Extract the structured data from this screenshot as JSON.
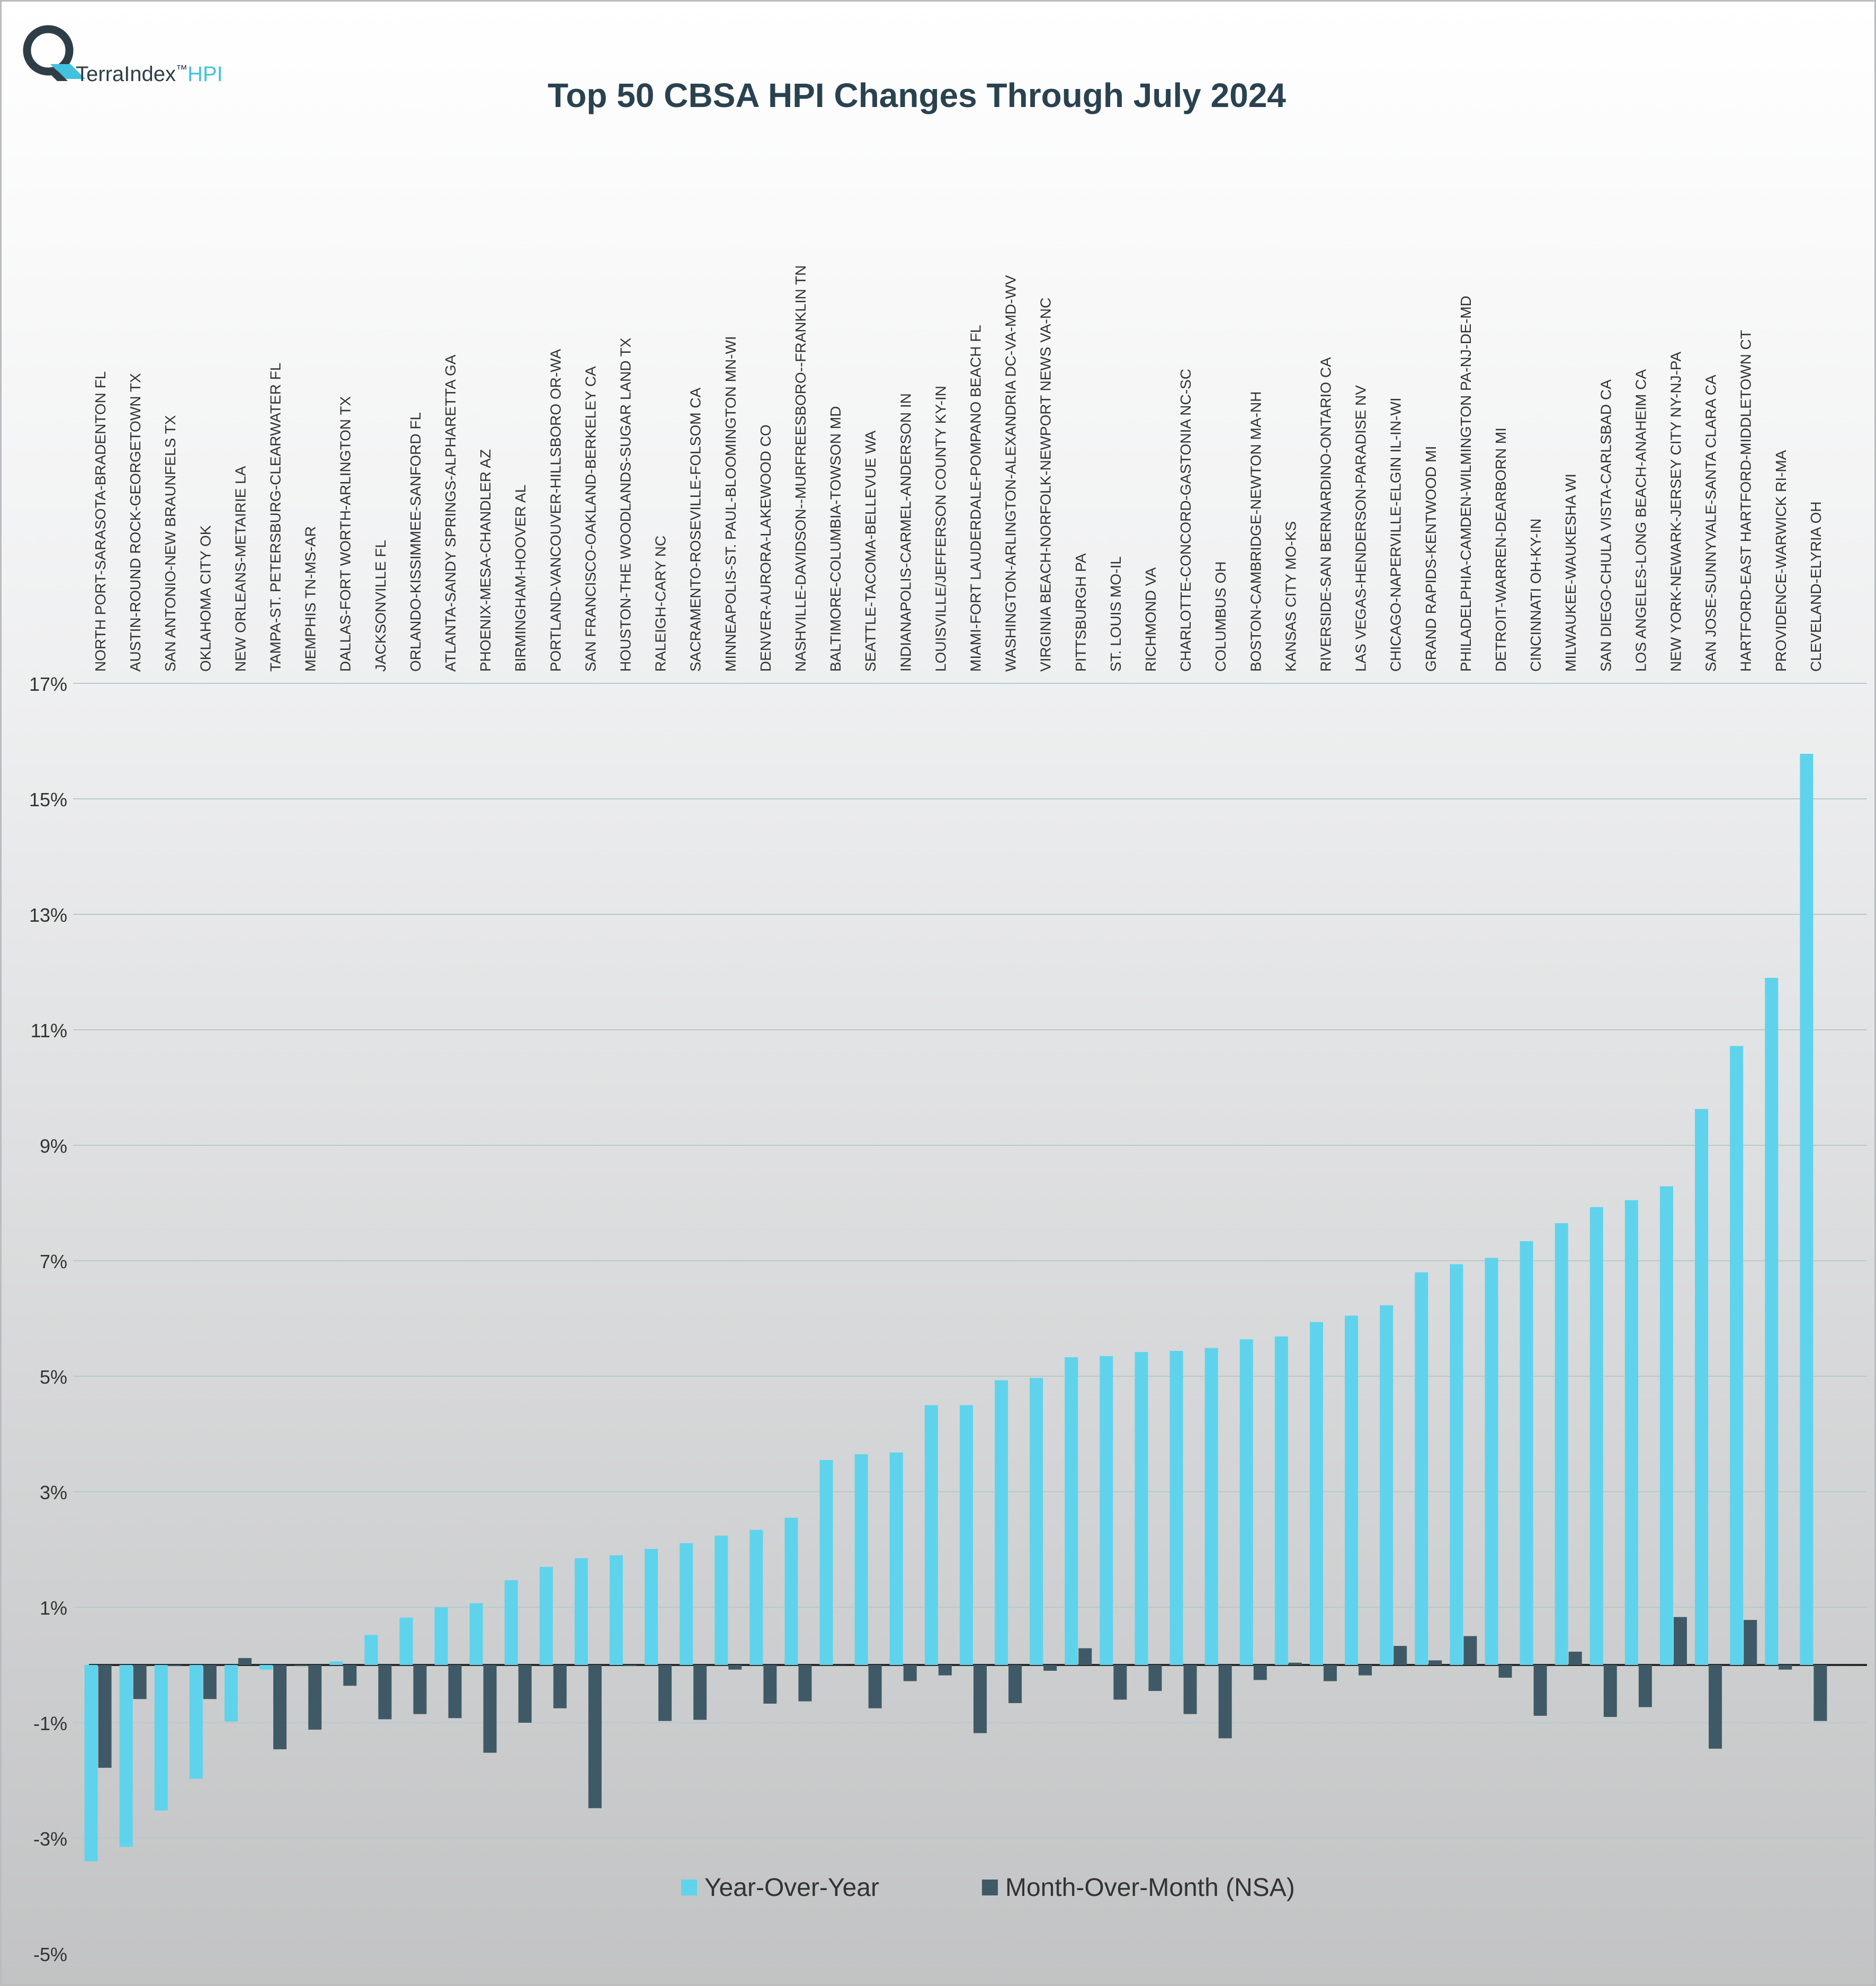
{
  "logo": {
    "brand": "TerraIndex",
    "trademark": "™",
    "suffix": "HPI"
  },
  "chart_data": {
    "type": "bar",
    "title": "Top 50 CBSA HPI Changes Through July 2024",
    "xlabel": "",
    "ylabel": "",
    "ylim": [
      -5,
      17
    ],
    "y_ticks": [
      17,
      15,
      13,
      11,
      9,
      7,
      5,
      3,
      1,
      -1,
      -3,
      -5
    ],
    "y_tick_labels": [
      "17%",
      "15%",
      "13%",
      "11%",
      "9%",
      "7%",
      "5%",
      "3%",
      "1%",
      "-1%",
      "-3%",
      "-5%"
    ],
    "grid": true,
    "legend_position": "bottom",
    "categories": [
      "NORTH PORT-SARASOTA-BRADENTON FL",
      "AUSTIN-ROUND ROCK-GEORGETOWN TX",
      "SAN ANTONIO-NEW BRAUNFELS TX",
      "OKLAHOMA CITY OK",
      "NEW ORLEANS-METAIRIE LA",
      "TAMPA-ST. PETERSBURG-CLEARWATER FL",
      "MEMPHIS TN-MS-AR",
      "DALLAS-FORT WORTH-ARLINGTON TX",
      "JACKSONVILLE FL",
      "ORLANDO-KISSIMMEE-SANFORD FL",
      "ATLANTA-SANDY SPRINGS-ALPHARETTA GA",
      "PHOENIX-MESA-CHANDLER AZ",
      "BIRMINGHAM-HOOVER AL",
      "PORTLAND-VANCOUVER-HILLSBORO OR-WA",
      "SAN FRANCISCO-OAKLAND-BERKELEY CA",
      "HOUSTON-THE WOODLANDS-SUGAR LAND TX",
      "RALEIGH-CARY NC",
      "SACRAMENTO-ROSEVILLE-FOLSOM CA",
      "MINNEAPOLIS-ST. PAUL-BLOOMINGTON MN-WI",
      "DENVER-AURORA-LAKEWOOD CO",
      "NASHVILLE-DAVIDSON--MURFREESBORO--FRANKLIN TN",
      "BALTIMORE-COLUMBIA-TOWSON MD",
      "SEATTLE-TACOMA-BELLEVUE WA",
      "INDIANAPOLIS-CARMEL-ANDERSON IN",
      "LOUISVILLE/JEFFERSON COUNTY KY-IN",
      "MIAMI-FORT LAUDERDALE-POMPANO BEACH FL",
      "WASHINGTON-ARLINGTON-ALEXANDRIA DC-VA-MD-WV",
      "VIRGINIA BEACH-NORFOLK-NEWPORT NEWS VA-NC",
      "PITTSBURGH PA",
      "ST. LOUIS MO-IL",
      "RICHMOND VA",
      "CHARLOTTE-CONCORD-GASTONIA NC-SC",
      "COLUMBUS OH",
      "BOSTON-CAMBRIDGE-NEWTON MA-NH",
      "KANSAS CITY MO-KS",
      "RIVERSIDE-SAN BERNARDINO-ONTARIO CA",
      "LAS VEGAS-HENDERSON-PARADISE NV",
      "CHICAGO-NAPERVILLE-ELGIN IL-IN-WI",
      "GRAND RAPIDS-KENTWOOD MI",
      "PHILADELPHIA-CAMDEN-WILMINGTON PA-NJ-DE-MD",
      "DETROIT-WARREN-DEARBORN MI",
      "CINCINNATI OH-KY-IN",
      "MILWAUKEE-WAUKESHA WI",
      "SAN DIEGO-CHULA VISTA-CARLSBAD CA",
      "LOS ANGELES-LONG BEACH-ANAHEIM CA",
      "NEW YORK-NEWARK-JERSEY CITY NY-NJ-PA",
      "SAN JOSE-SUNNYVALE-SANTA CLARA CA",
      "HARTFORD-EAST HARTFORD-MIDDLETOWN CT",
      "PROVIDENCE-WARWICK RI-MA",
      "CLEVELAND-ELYRIA OH"
    ],
    "series": [
      {
        "name": "Year-Over-Year",
        "color": "#5fd3ec",
        "values": [
          -3.4,
          -3.15,
          -2.52,
          -1.97,
          -0.98,
          -0.08,
          0.0,
          0.06,
          0.52,
          0.82,
          1.0,
          1.07,
          1.47,
          1.7,
          1.85,
          1.9,
          2.01,
          2.11,
          2.24,
          2.34,
          2.55,
          3.55,
          3.65,
          3.68,
          4.5,
          4.5,
          4.93,
          4.97,
          5.33,
          5.35,
          5.42,
          5.44,
          5.49,
          5.64,
          5.69,
          5.94,
          6.05,
          6.23,
          6.8,
          6.94,
          7.05,
          7.34,
          7.65,
          7.93,
          8.05,
          8.29,
          9.63,
          10.72,
          11.9,
          15.78
        ]
      },
      {
        "name": "Month-Over-Month (NSA)",
        "color": "#3f5a66",
        "values": [
          -1.78,
          -0.59,
          -0.02,
          -0.59,
          0.12,
          -1.46,
          -1.12,
          -0.36,
          -0.94,
          -0.85,
          -0.92,
          -1.52,
          -1.0,
          -0.75,
          -2.48,
          -0.02,
          -0.97,
          -0.95,
          -0.08,
          -0.67,
          -0.63,
          0.0,
          -0.75,
          -0.28,
          -0.18,
          -1.18,
          -0.66,
          -0.1,
          0.29,
          -0.6,
          -0.45,
          -0.85,
          -1.27,
          -0.26,
          0.04,
          -0.28,
          -0.18,
          0.33,
          0.08,
          0.5,
          -0.22,
          -0.88,
          0.23,
          -0.9,
          -0.73,
          0.83,
          -1.45,
          0.78,
          -0.08,
          -0.97
        ]
      }
    ]
  }
}
